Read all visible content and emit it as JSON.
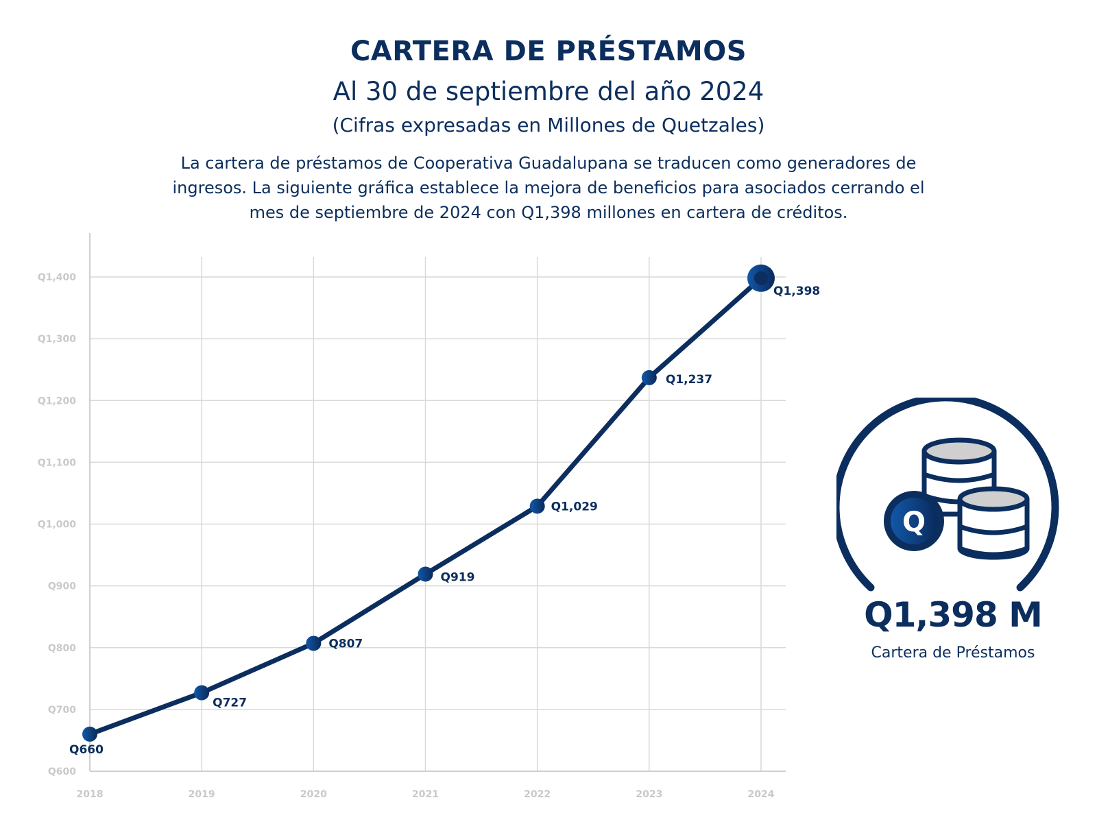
{
  "header": {
    "title": "CARTERA DE PRÉSTAMOS",
    "subtitle": "Al 30 de septiembre del año 2024",
    "units": "(Cifras expresadas en Millones de Quetzales)",
    "description_lines": [
      "La cartera de préstamos de Cooperativa Guadalupana se traducen como generadores de",
      "ingresos. La siguiente gráfica establece la mejora de beneficios para asociados cerrando el",
      "mes de septiembre de 2024 con Q1,398 millones en cartera de créditos."
    ]
  },
  "colors": {
    "primary": "#0b2e5e",
    "dot_light": "#1257a8",
    "grid": "#d9d9d9",
    "tick": "#c9c9c9",
    "coin_fill": "#cfcfcf"
  },
  "chart_data": {
    "type": "line",
    "title": "CARTERA DE PRÉSTAMOS",
    "xlabel": "",
    "ylabel": "",
    "x": [
      "2018",
      "2019",
      "2020",
      "2021",
      "2022",
      "2023",
      "2024"
    ],
    "series": [
      {
        "name": "Cartera de Préstamos (Millones de Quetzales)",
        "values": [
          660,
          727,
          807,
          919,
          1029,
          1237,
          1398
        ],
        "labels": [
          "Q660",
          "Q727",
          "Q807",
          "Q919",
          "Q1,029",
          "Q1,237",
          "Q1,398"
        ]
      }
    ],
    "ylim": [
      600,
      1400
    ],
    "yticks": [
      600,
      700,
      800,
      900,
      1000,
      1100,
      1200,
      1300,
      1400
    ],
    "ytick_labels": [
      "Q600",
      "Q700",
      "Q800",
      "Q900",
      "Q1,000",
      "Q1,100",
      "Q1,200",
      "Q1,300",
      "Q1,400"
    ],
    "grid": true,
    "legend": "none",
    "highlight_last_point": true
  },
  "kpi": {
    "icon": "coins-stack-icon",
    "coin_letter": "Q",
    "value": "Q1,398 M",
    "label": "Cartera de Préstamos"
  }
}
